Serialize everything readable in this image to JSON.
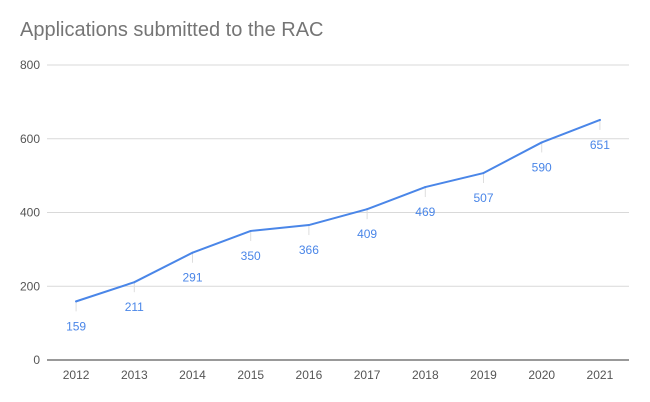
{
  "chart_data": {
    "type": "line",
    "title": "Applications submitted to the RAC",
    "xlabel": "",
    "ylabel": "",
    "categories": [
      "2012",
      "2013",
      "2014",
      "2015",
      "2016",
      "2017",
      "2018",
      "2019",
      "2020",
      "2021"
    ],
    "series": [
      {
        "values": [
          159,
          211,
          291,
          350,
          366,
          409,
          469,
          507,
          590,
          651
        ]
      }
    ],
    "ylim": [
      0,
      800
    ],
    "yticks": [
      0,
      200,
      400,
      600,
      800
    ],
    "grid": true,
    "data_labels": true,
    "colors": {
      "line": "#4a86e8",
      "grid": "#d9d9d9",
      "axis": "#333333"
    }
  }
}
